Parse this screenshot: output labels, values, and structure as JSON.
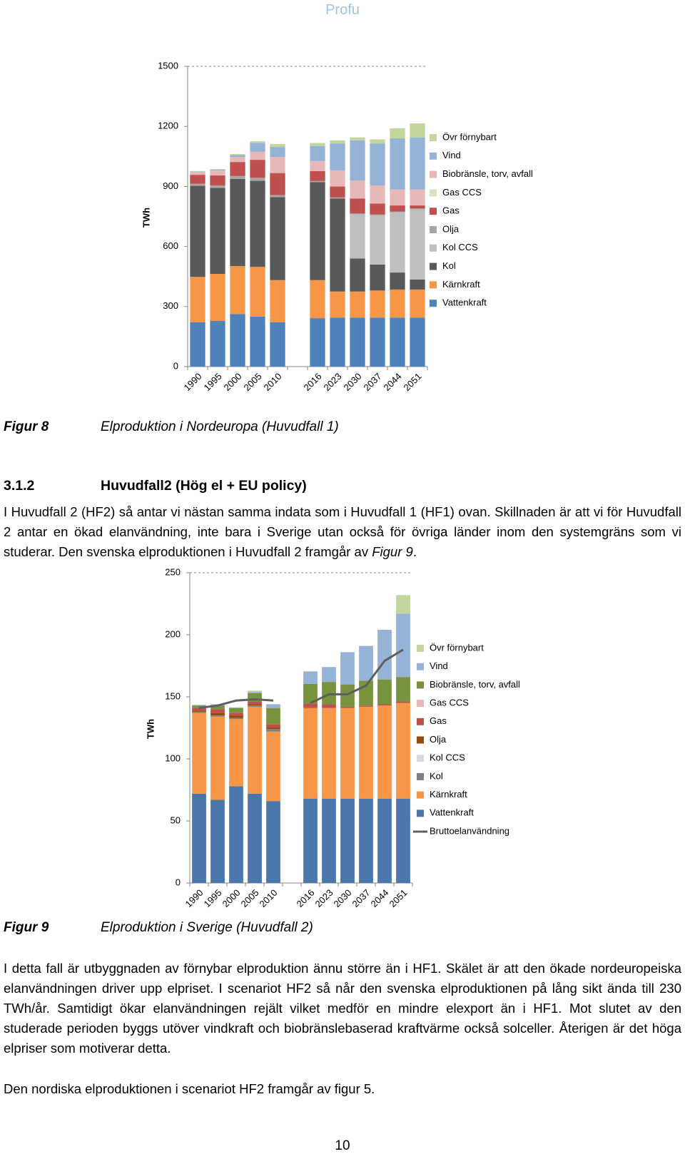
{
  "header": {
    "title": "Profu"
  },
  "chart_data": [
    {
      "type": "bar",
      "stacked": true,
      "y_label": "TWh",
      "categories": [
        "1990",
        "1995",
        "2000",
        "2005",
        "2010",
        null,
        "2016",
        "2023",
        "2030",
        "2037",
        "2044",
        "2051"
      ],
      "series": [
        {
          "name": "Vattenkraft",
          "color": "#4f81bd",
          "values": [
            222,
            228,
            262,
            250,
            222,
            null,
            242,
            245,
            245,
            245,
            245,
            245
          ]
        },
        {
          "name": "Kärnkraft",
          "color": "#f79646",
          "values": [
            226,
            235,
            240,
            248,
            210,
            null,
            190,
            130,
            130,
            135,
            140,
            140
          ]
        },
        {
          "name": "Kol",
          "color": "#595959",
          "values": [
            455,
            430,
            435,
            430,
            415,
            null,
            490,
            465,
            165,
            130,
            85,
            50
          ]
        },
        {
          "name": "Kol CCS",
          "color": "#bfbfbf",
          "values": [
            0,
            0,
            0,
            0,
            0,
            null,
            0,
            0,
            220,
            245,
            300,
            350
          ]
        },
        {
          "name": "Olja",
          "color": "#a6a6a6",
          "values": [
            10,
            12,
            15,
            15,
            10,
            null,
            5,
            5,
            5,
            5,
            5,
            5
          ]
        },
        {
          "name": "Gas",
          "color": "#c0504d",
          "values": [
            45,
            50,
            70,
            90,
            110,
            null,
            50,
            55,
            75,
            55,
            30,
            15
          ]
        },
        {
          "name": "Gas CCS",
          "color": "#d7e4bd",
          "values": [
            0,
            0,
            0,
            0,
            0,
            null,
            0,
            0,
            0,
            0,
            0,
            0
          ]
        },
        {
          "name": "Biobränsle, torv, avfall",
          "color": "#e6b9b8",
          "values": [
            15,
            25,
            25,
            40,
            80,
            null,
            50,
            80,
            90,
            90,
            80,
            80
          ]
        },
        {
          "name": "Vind",
          "color": "#95b3d7",
          "values": [
            2,
            4,
            10,
            45,
            50,
            null,
            75,
            135,
            200,
            210,
            255,
            260
          ]
        },
        {
          "name": "Övr förnybart",
          "color": "#c3d69b",
          "values": [
            2,
            3,
            5,
            8,
            15,
            null,
            15,
            15,
            15,
            20,
            50,
            70
          ]
        }
      ],
      "ylim": [
        0,
        1500
      ],
      "yticks": [
        0,
        300,
        600,
        900,
        1200,
        1500
      ],
      "legend": "right"
    },
    {
      "type": "bar",
      "stacked": true,
      "y_label": "TWh",
      "categories": [
        "1990",
        "1995",
        "2000",
        "2005",
        "2010",
        null,
        "2016",
        "2023",
        "2030",
        "2037",
        "2044",
        "2051"
      ],
      "series": [
        {
          "name": "Vattenkraft",
          "color": "#4a76ac",
          "values": [
            72,
            67,
            78,
            72,
            66,
            null,
            68,
            68,
            68,
            68,
            68,
            68
          ]
        },
        {
          "name": "Kärnkraft",
          "color": "#f79646",
          "values": [
            65,
            67,
            54,
            70,
            56,
            null,
            73,
            73,
            73,
            74,
            75,
            77
          ]
        },
        {
          "name": "Kol",
          "color": "#7f7f7f",
          "values": [
            1,
            1,
            1,
            1,
            2,
            null,
            0,
            0,
            0,
            0,
            0,
            0
          ]
        },
        {
          "name": "Kol CCS",
          "color": "#d9d9d9",
          "values": [
            0,
            0,
            0,
            0,
            0,
            null,
            0,
            0,
            0,
            0,
            0,
            0
          ]
        },
        {
          "name": "Olja",
          "color": "#984807",
          "values": [
            1,
            2,
            2,
            1,
            1,
            null,
            0.5,
            0,
            0,
            0,
            0,
            0
          ]
        },
        {
          "name": "Gas",
          "color": "#c0504d",
          "values": [
            2,
            3,
            2,
            2,
            3,
            null,
            3,
            3,
            1,
            1,
            1,
            1
          ]
        },
        {
          "name": "Gas CCS",
          "color": "#e6b9b8",
          "values": [
            0,
            0,
            0,
            0,
            0,
            null,
            0,
            0,
            0,
            0,
            0,
            0
          ]
        },
        {
          "name": "Biobränsle, torv, avfall",
          "color": "#77933c",
          "values": [
            2,
            3,
            4,
            7,
            13,
            null,
            16,
            18,
            18,
            20,
            20,
            20
          ]
        },
        {
          "name": "Vind",
          "color": "#95b3d7",
          "values": [
            0.5,
            1,
            0.5,
            1,
            3,
            null,
            10,
            12,
            26,
            28,
            40,
            51
          ]
        },
        {
          "name": "Övr förnybart",
          "color": "#c3d69b",
          "values": [
            0,
            0,
            0,
            1,
            0,
            null,
            0,
            0,
            0,
            0,
            0,
            15
          ]
        },
        {
          "name": "Bruttoelanvändning",
          "type": "line",
          "color": "#5f5f5f",
          "values": [
            141,
            143,
            147,
            148,
            147,
            null,
            145,
            152,
            152,
            159,
            179,
            188
          ]
        }
      ],
      "ylim": [
        0,
        250
      ],
      "yticks": [
        0,
        50,
        100,
        150,
        200,
        250
      ],
      "legend": "right"
    }
  ],
  "captions": [
    {
      "label": "Figur 8",
      "text": "Elproduktion i Nordeuropa (Huvudfall 1)"
    },
    {
      "label": "Figur 9",
      "text": "Elproduktion i Sverige (Huvudfall 2)"
    }
  ],
  "section": {
    "number": "3.1.2",
    "title": "Huvudfall2 (Hög el + EU policy)"
  },
  "paragraphs": [
    {
      "text": "I Huvudfall 2 (HF2) så antar vi nästan samma indata som i Huvudfall 1 (HF1) ovan. Skillnaden är att vi för Huvudfall 2 antar en ökad elanvändning, inte bara i Sverige utan också för övriga länder inom den systemgräns som vi studerar. Den svenska elproduktionen i Huvudfall 2 framgår av ",
      "ref": "Figur 9",
      "end": "."
    },
    {
      "text": "I detta fall är utbyggnaden av förnybar elproduktion ännu större än i HF1. Skälet är att den ökade nordeuropeiska elanvändningen driver upp elpriset. I scenariot HF2 så når den svenska elproduktionen på lång sikt ända till 230 TWh/år. Samtidigt ökar elanvändningen rejält vilket medför en mindre elexport än i HF1. Mot slutet av den studerade perioden byggs utöver vindkraft och biobränslebaserad kraftvärme också solceller. Återigen är det höga elpriser som motiverar detta."
    },
    {
      "text": "Den nordiska elproduktionen i scenariot HF2 framgår av figur 5."
    }
  ],
  "footer": {
    "page_number": "10"
  }
}
